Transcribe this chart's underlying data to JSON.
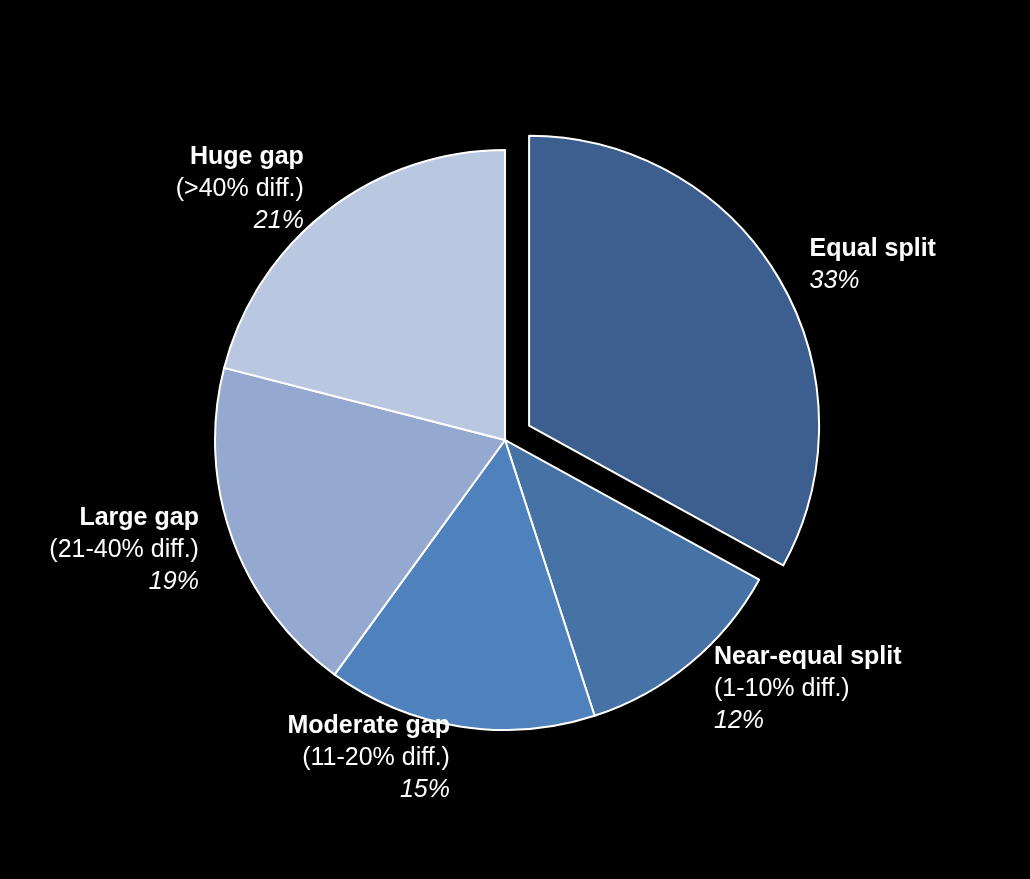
{
  "chart_data": {
    "type": "pie",
    "categories": [
      "Equal split",
      "Near-equal split\n(1-10% diff.)",
      "Moderate gap\n(11-20% diff.)",
      "Large gap\n(21-40% diff.)",
      "Huge gap\n(>40% diff.)"
    ],
    "values": [
      33,
      12,
      15,
      19,
      21
    ],
    "colors": [
      "#3d5f8f",
      "#4672a6",
      "#4f81bd",
      "#95a9d0",
      "#b9c7e0"
    ],
    "value_labels": [
      "33%",
      "12%",
      "15%",
      "19%",
      "21%"
    ]
  }
}
